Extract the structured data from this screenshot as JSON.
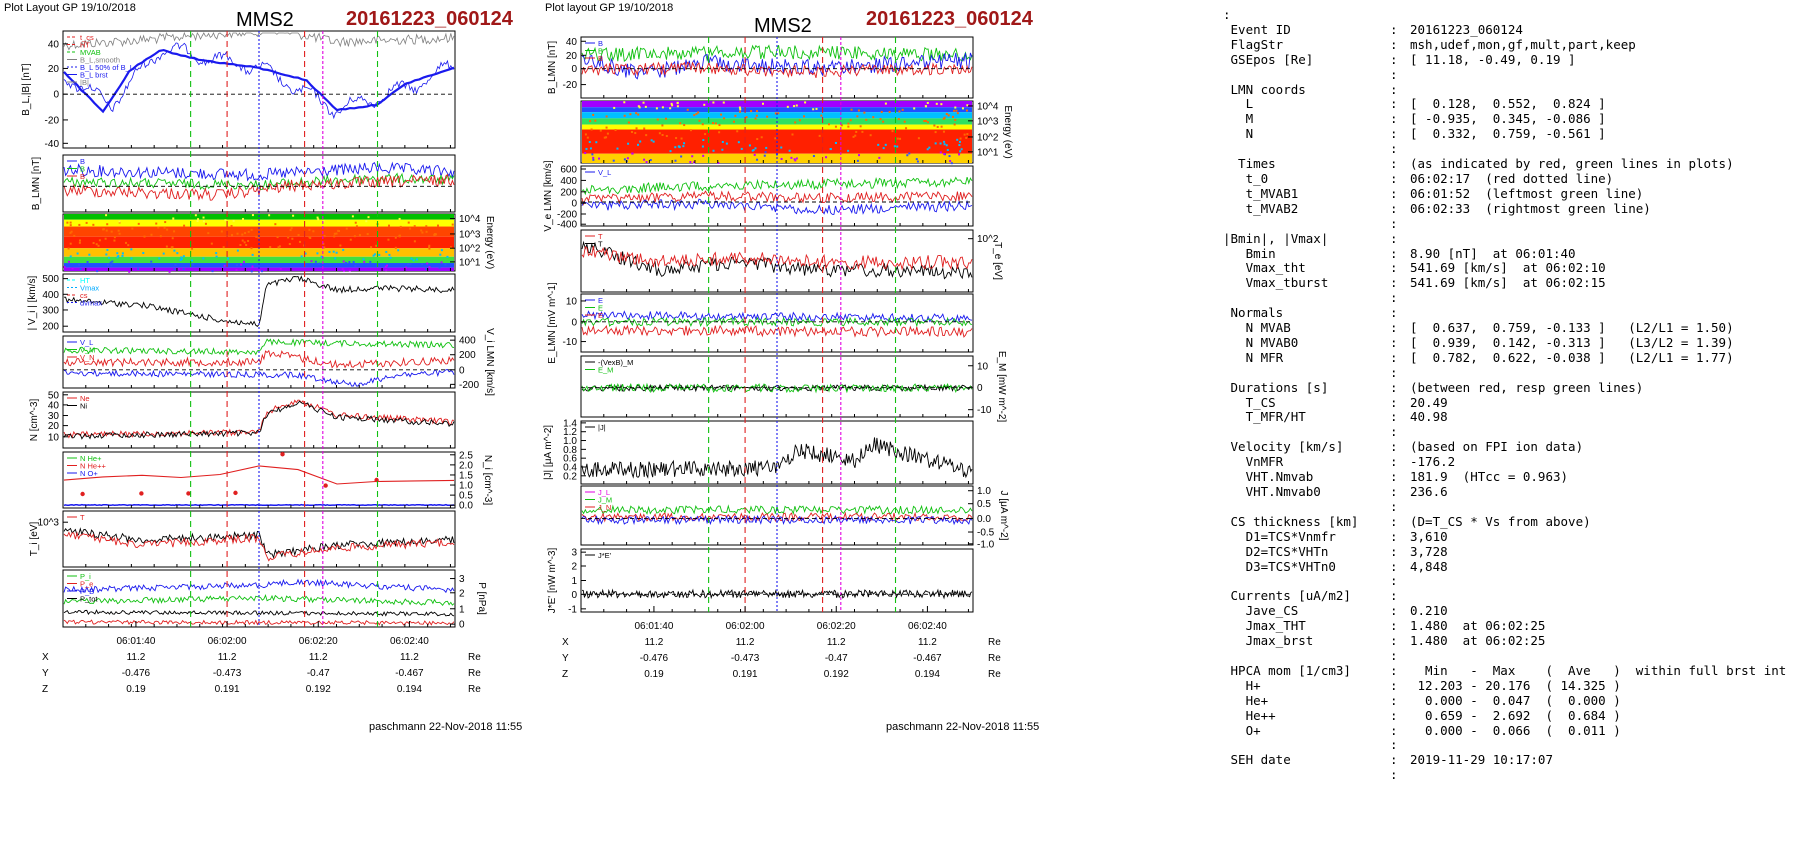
{
  "header": {
    "left_small": "Plot Layout GP 19/10/2018",
    "mid_small": "Plot layout GP 19/10/2018",
    "spacecraft": "MMS2",
    "event_id": "20161223_060124"
  },
  "footer": {
    "left": "paschmann 22-Nov-2018 11:55",
    "mid": "paschmann 22-Nov-2018 11:55"
  },
  "colors": {
    "red": "#e02020",
    "green": "#10c010",
    "blue": "#1a1aee",
    "black": "#000000",
    "gray": "#808080",
    "magenta": "#e000e0",
    "title_red": "#a01818"
  },
  "time_axis": {
    "ticks": [
      "06:01:40",
      "06:02:00",
      "06:02:20",
      "06:02:40"
    ],
    "coords": {
      "rows": [
        {
          "label": "X",
          "values": [
            "11.2",
            "11.2",
            "11.2",
            "11.2"
          ],
          "unit": "Re"
        },
        {
          "label": "Y",
          "values": [
            "-0.476",
            "-0.473",
            "-0.47",
            "-0.467"
          ],
          "unit": "Re"
        },
        {
          "label": "Z",
          "values": [
            "0.19",
            "0.191",
            "0.192",
            "0.194"
          ],
          "unit": "Re"
        }
      ]
    }
  },
  "markers": {
    "green_times": [
      "06:01:52",
      "06:02:33"
    ],
    "red_times": [
      "06:02:00",
      "06:02:17"
    ],
    "blue_time": "06:02:07",
    "magenta_time": "06:02:21"
  },
  "chart_data": [
    {
      "type": "line",
      "panel": "left-B",
      "ylabel": "B_L,|B| [nT]",
      "yticks": [
        "-40",
        "-20",
        "0",
        "20",
        "40"
      ],
      "ylim": [
        -45,
        45
      ],
      "legend": [
        "t_cs",
        "HT",
        "MVAB",
        "B_L,smooth",
        "B_L 50% of B_L",
        "B_L brst",
        "|B|"
      ],
      "series": [
        {
          "name": "|B|",
          "color": "gray"
        },
        {
          "name": "B_L",
          "color": "blue"
        },
        {
          "name": "B_L smooth",
          "color": "blue"
        }
      ]
    },
    {
      "type": "line",
      "panel": "left-BLMN",
      "ylabel": "B_LMN [nT]",
      "legend": [
        "B_L",
        "B_M",
        "B_N"
      ]
    },
    {
      "type": "heatmap",
      "panel": "left-ion-spectrogram",
      "ylabel": "Energy (eV)",
      "yticks": [
        "10^4",
        "10^3",
        "10^2",
        "10^1"
      ]
    },
    {
      "type": "line",
      "panel": "left-Vi",
      "ylabel": "| V_i | [km/s]",
      "yticks": [
        "500",
        "400",
        "300",
        "200"
      ],
      "legend": [
        "HT",
        "Vmax",
        "cs",
        "dvmax"
      ]
    },
    {
      "type": "line",
      "panel": "left-ViLMN",
      "ylabel": "V_i LMN [km/s]",
      "yticks": [
        "400",
        "200",
        "0",
        "-200"
      ],
      "legend": [
        "V_L",
        "V_M",
        "V_N"
      ]
    },
    {
      "type": "line",
      "panel": "left-N",
      "ylabel": "N [cm^-3]",
      "yticks": [
        "50",
        "40",
        "30",
        "20",
        "10"
      ],
      "legend": [
        "Ne",
        "Ni"
      ]
    },
    {
      "type": "line",
      "panel": "left-Nhpca",
      "ylabel": "N_i [cm^-3]",
      "yticks": [
        "2.5",
        "2.0",
        "1.5",
        "1.0",
        "0.5",
        "0.0"
      ],
      "legend": [
        "N He+",
        "N He++",
        "N O+"
      ]
    },
    {
      "type": "line",
      "panel": "left-Ti",
      "ylabel": "T_i [eV]",
      "yticks": [
        "10^3"
      ],
      "legend": [
        "T"
      ]
    },
    {
      "type": "line",
      "panel": "left-P",
      "ylabel": "P [nPa]",
      "yticks": [
        "3",
        "2",
        "1",
        "0"
      ],
      "legend": [
        "P_i",
        "P_e",
        "P_B",
        "P_tot"
      ]
    },
    {
      "type": "line",
      "panel": "mid-BLMN",
      "ylabel": "B_LMN [nT]",
      "yticks": [
        "40",
        "20",
        "0",
        "-20"
      ],
      "legend": [
        "B_L",
        "B_M",
        "B_N"
      ]
    },
    {
      "type": "heatmap",
      "panel": "mid-electron-spectrogram",
      "ylabel": "Energy (eV)",
      "yticks": [
        "10^4",
        "10^3",
        "10^2",
        "10^1"
      ]
    },
    {
      "type": "line",
      "panel": "mid-VeLMN",
      "ylabel": "V_e LMN [km/s]",
      "yticks": [
        "600",
        "400",
        "200",
        "0",
        "-200",
        "-400"
      ],
      "legend": [
        "V_L"
      ]
    },
    {
      "type": "line",
      "panel": "mid-Te",
      "ylabel": "T_e [eV]",
      "yticks": [
        "10^2"
      ],
      "legend": [
        "T_par",
        "T_perp"
      ]
    },
    {
      "type": "line",
      "panel": "mid-ELMN",
      "ylabel": "E_LMN [mV m^-1]",
      "yticks": [
        "10",
        "0",
        "-10"
      ],
      "legend": [
        "E_L",
        "E_M",
        "E_N"
      ]
    },
    {
      "type": "line",
      "panel": "mid-EM",
      "ylabel": "E_M [mV m^-1]",
      "yticks": [
        "10",
        "0",
        "-10"
      ],
      "legend": [
        "-(VexB)_M",
        "E_M"
      ]
    },
    {
      "type": "line",
      "panel": "mid-J",
      "ylabel": "|J| [μA m^-2]",
      "yticks": [
        "1.4",
        "1.2",
        "1.0",
        "0.8",
        "0.6",
        "0.4",
        "0.2"
      ],
      "legend": [
        "|J|"
      ]
    },
    {
      "type": "line",
      "panel": "mid-JLMN",
      "ylabel": "J [μA m^-2]",
      "yticks": [
        "1.0",
        "0.5",
        "0.0",
        "-0.5",
        "-1.0"
      ],
      "legend": [
        "J_L",
        "J_M",
        "J_N"
      ]
    },
    {
      "type": "line",
      "panel": "mid-JE",
      "ylabel": "J*E' [nW m^-3]",
      "yticks": [
        "3",
        "2",
        "1",
        "0",
        "-1"
      ],
      "legend": [
        "J*E'"
      ]
    }
  ],
  "info_lines": [
    {
      "k": ":",
      "s": "",
      "v": ""
    },
    {
      "k": " Event ID",
      "s": ":",
      "v": "20161223_060124"
    },
    {
      "k": " FlagStr",
      "s": ":",
      "v": "msh,udef,mon,gf,mult,part,keep"
    },
    {
      "k": " GSEpos [Re]",
      "s": ":",
      "v": "[ 11.18, -0.49, 0.19 ]"
    },
    {
      "k": "",
      "s": ":",
      "v": ""
    },
    {
      "k": " LMN coords",
      "s": ":",
      "v": ""
    },
    {
      "k": "   L",
      "s": ":",
      "v": "[  0.128,  0.552,  0.824 ]"
    },
    {
      "k": "   M",
      "s": ":",
      "v": "[ -0.935,  0.345, -0.086 ]"
    },
    {
      "k": "   N",
      "s": ":",
      "v": "[  0.332,  0.759, -0.561 ]"
    },
    {
      "k": "",
      "s": ":",
      "v": ""
    },
    {
      "k": "  Times",
      "s": ":",
      "v": "(as indicated by red, green lines in plots)"
    },
    {
      "k": "   t_0",
      "s": ":",
      "v": "06:02:17  (red dotted line)"
    },
    {
      "k": "   t_MVAB1",
      "s": ":",
      "v": "06:01:52  (leftmost green line)"
    },
    {
      "k": "   t_MVAB2",
      "s": ":",
      "v": "06:02:33  (rightmost green line)"
    },
    {
      "k": "",
      "s": ":",
      "v": ""
    },
    {
      "k": "|Bmin|, |Vmax|",
      "s": ":",
      "v": ""
    },
    {
      "k": "   Bmin",
      "s": ":",
      "v": "8.90 [nT]  at 06:01:40"
    },
    {
      "k": "   Vmax_tht",
      "s": ":",
      "v": "541.69 [km/s]  at 06:02:10"
    },
    {
      "k": "   Vmax_tburst",
      "s": ":",
      "v": "541.69 [km/s]  at 06:02:15"
    },
    {
      "k": "",
      "s": ":",
      "v": ""
    },
    {
      "k": " Normals",
      "s": ":",
      "v": ""
    },
    {
      "k": "   N MVAB",
      "s": ":",
      "v": "[  0.637,  0.759, -0.133 ]   (L2/L1 = 1.50)"
    },
    {
      "k": "   N MVAB0",
      "s": ":",
      "v": "[  0.939,  0.142, -0.313 ]   (L3/L2 = 1.39)"
    },
    {
      "k": "   N MFR",
      "s": ":",
      "v": "[  0.782,  0.622, -0.038 ]   (L2/L1 = 1.77)"
    },
    {
      "k": "",
      "s": ":",
      "v": ""
    },
    {
      "k": " Durations [s]",
      "s": ":",
      "v": "(between red, resp green lines)"
    },
    {
      "k": "   T_CS",
      "s": ":",
      "v": "20.49"
    },
    {
      "k": "   T_MFR/HT",
      "s": ":",
      "v": "40.98"
    },
    {
      "k": "",
      "s": ":",
      "v": ""
    },
    {
      "k": " Velocity [km/s]",
      "s": ":",
      "v": "(based on FPI ion data)"
    },
    {
      "k": "   VnMFR",
      "s": ":",
      "v": "-176.2"
    },
    {
      "k": "   VHT.Nmvab",
      "s": ":",
      "v": "181.9  (HTcc = 0.963)"
    },
    {
      "k": "   VHT.Nmvab0",
      "s": ":",
      "v": "236.6"
    },
    {
      "k": "",
      "s": ":",
      "v": ""
    },
    {
      "k": " CS thickness [km]",
      "s": ":",
      "v": "(D=T_CS * Vs from above)"
    },
    {
      "k": "   D1=TCS*Vnmfr",
      "s": ":",
      "v": "3,610"
    },
    {
      "k": "   D2=TCS*VHTn",
      "s": ":",
      "v": "3,728"
    },
    {
      "k": "   D3=TCS*VHTn0",
      "s": ":",
      "v": "4,848"
    },
    {
      "k": "",
      "s": ":",
      "v": ""
    },
    {
      "k": " Currents [uA/m2]",
      "s": ":",
      "v": ""
    },
    {
      "k": "   Jave_CS",
      "s": ":",
      "v": "0.210"
    },
    {
      "k": "   Jmax_THT",
      "s": ":",
      "v": "1.480  at 06:02:25"
    },
    {
      "k": "   Jmax_brst",
      "s": ":",
      "v": "1.480  at 06:02:25"
    },
    {
      "k": "",
      "s": ":",
      "v": ""
    },
    {
      "k": " HPCA mom [1/cm3]",
      "s": ":",
      "v": "  Min   -  Max    (  Ave   )  within full brst int"
    },
    {
      "k": "   H+",
      "s": ":",
      "v": " 12.203 - 20.176  ( 14.325 )"
    },
    {
      "k": "   He+",
      "s": ":",
      "v": "  0.000 -  0.047  (  0.000 )"
    },
    {
      "k": "   He++",
      "s": ":",
      "v": "  0.659 -  2.692  (  0.684 )"
    },
    {
      "k": "   O+",
      "s": ":",
      "v": "  0.000 -  0.066  (  0.011 )"
    },
    {
      "k": "",
      "s": ":",
      "v": ""
    },
    {
      "k": " SEH date",
      "s": ":",
      "v": "2019-11-29 10:17:07"
    },
    {
      "k": "",
      "s": ":",
      "v": ""
    }
  ]
}
